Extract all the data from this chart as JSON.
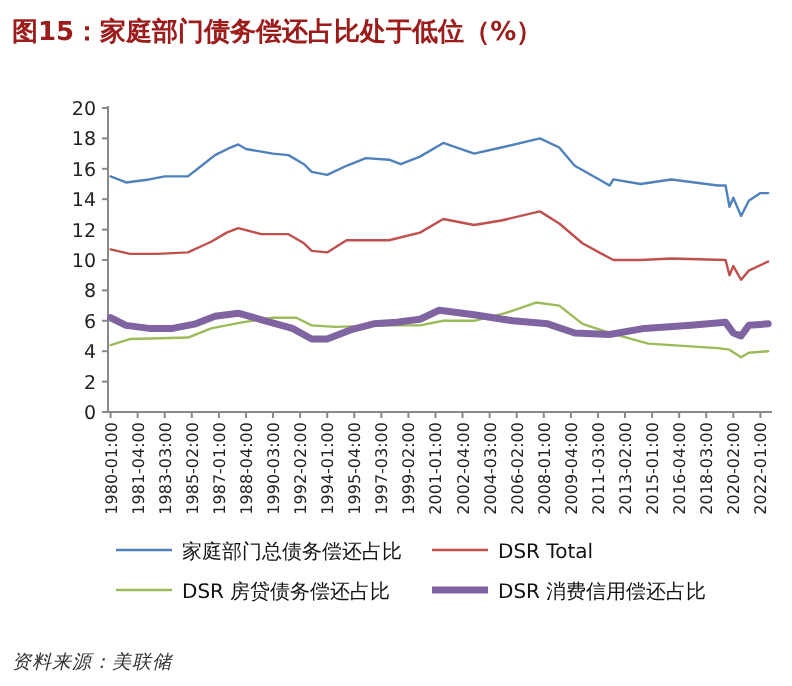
{
  "chart_data": {
    "type": "line",
    "title": "图15：家庭部门债务偿还占比处于低位（%）",
    "xlim": [
      "1979-11",
      "2022-10"
    ],
    "xticks": [
      {
        "value": "1980-01",
        "label": "1980-01:00"
      },
      {
        "value": "1981-10",
        "label": "1981-04:00"
      },
      {
        "value": "1983-07",
        "label": "1983-03:00"
      },
      {
        "value": "1985-04",
        "label": "1985-02:00"
      },
      {
        "value": "1987-01",
        "label": "1987-01:00"
      },
      {
        "value": "1988-10",
        "label": "1988-04:00"
      },
      {
        "value": "1990-07",
        "label": "1990-03:00"
      },
      {
        "value": "1992-04",
        "label": "1992-02:00"
      },
      {
        "value": "1994-01",
        "label": "1994-01:00"
      },
      {
        "value": "1995-10",
        "label": "1995-04:00"
      },
      {
        "value": "1997-07",
        "label": "1997-03:00"
      },
      {
        "value": "1999-04",
        "label": "1999-02:00"
      },
      {
        "value": "2001-01",
        "label": "2001-01:00"
      },
      {
        "value": "2002-10",
        "label": "2002-04:00"
      },
      {
        "value": "2004-07",
        "label": "2004-03:00"
      },
      {
        "value": "2006-04",
        "label": "2006-02:00"
      },
      {
        "value": "2008-01",
        "label": "2008-01:00"
      },
      {
        "value": "2009-10",
        "label": "2009-04:00"
      },
      {
        "value": "2011-07",
        "label": "2011-03:00"
      },
      {
        "value": "2013-04",
        "label": "2013-02:00"
      },
      {
        "value": "2015-01",
        "label": "2015-01:00"
      },
      {
        "value": "2016-10",
        "label": "2016-04:00"
      },
      {
        "value": "2018-07",
        "label": "2018-03:00"
      },
      {
        "value": "2020-04",
        "label": "2020-02:00"
      },
      {
        "value": "2022-01",
        "label": "2022-01:00"
      }
    ],
    "ylim": [
      0,
      20
    ],
    "yticks": [
      0,
      2,
      4,
      6,
      8,
      10,
      12,
      14,
      16,
      18,
      20
    ],
    "grid": false,
    "legend": "bottom",
    "marker": "none",
    "line_style": "solid",
    "series": [
      {
        "name": "家庭部门总债务偿还占比",
        "color": "#4f81bd",
        "x": [
          "1980-01",
          "1981-01",
          "1982-07",
          "1983-07",
          "1985-01",
          "1986-01",
          "1986-10",
          "1987-10",
          "1988-04",
          "1988-10",
          "1990-07",
          "1991-07",
          "1992-07",
          "1993-01",
          "1994-01",
          "1995-04",
          "1996-07",
          "1998-01",
          "1998-10",
          "2000-01",
          "2001-07",
          "2003-07",
          "2005-04",
          "2007-10",
          "2009-01",
          "2010-01",
          "2011-10",
          "2012-04",
          "2012-07",
          "2014-04",
          "2016-04",
          "2019-04",
          "2019-10",
          "2020-01",
          "2020-04",
          "2020-10",
          "2021-04",
          "2022-01",
          "2022-07"
        ],
        "values": [
          15.5,
          15.1,
          15.3,
          15.5,
          15.5,
          16.3,
          16.9,
          17.4,
          17.6,
          17.3,
          17.0,
          16.9,
          16.3,
          15.8,
          15.6,
          16.2,
          16.7,
          16.6,
          16.3,
          16.8,
          17.7,
          17.0,
          17.4,
          18.0,
          17.4,
          16.2,
          15.2,
          14.9,
          15.3,
          15.0,
          15.3,
          14.9,
          14.9,
          13.5,
          14.1,
          12.9,
          13.9,
          14.4,
          14.4
        ]
      },
      {
        "name": "DSR Total",
        "color": "#c0504d",
        "x": [
          "1980-01",
          "1981-04",
          "1983-01",
          "1985-01",
          "1986-07",
          "1987-07",
          "1988-04",
          "1989-10",
          "1991-07",
          "1992-07",
          "1993-01",
          "1994-01",
          "1995-04",
          "1998-01",
          "2000-01",
          "2001-07",
          "2003-07",
          "2005-04",
          "2007-10",
          "2009-01",
          "2010-07",
          "2011-10",
          "2012-07",
          "2014-04",
          "2016-04",
          "2019-10",
          "2020-01",
          "2020-04",
          "2020-10",
          "2021-04",
          "2022-07"
        ],
        "values": [
          10.7,
          10.4,
          10.4,
          10.5,
          11.2,
          11.8,
          12.1,
          11.7,
          11.7,
          11.1,
          10.6,
          10.5,
          11.3,
          11.3,
          11.8,
          12.7,
          12.3,
          12.6,
          13.2,
          12.4,
          11.1,
          10.4,
          10.0,
          10.0,
          10.1,
          10.0,
          9.0,
          9.6,
          8.7,
          9.3,
          9.9
        ]
      },
      {
        "name": "DSR 房贷债务偿还占比",
        "color": "#9bbb59",
        "x": [
          "1980-01",
          "1981-04",
          "1985-01",
          "1986-07",
          "1988-07",
          "1990-07",
          "1992-01",
          "1993-01",
          "1994-07",
          "1998-01",
          "2000-01",
          "2001-07",
          "2003-07",
          "2005-07",
          "2007-07",
          "2009-01",
          "2010-07",
          "2012-04",
          "2014-10",
          "2019-04",
          "2020-01",
          "2020-10",
          "2021-04",
          "2022-07"
        ],
        "values": [
          4.4,
          4.8,
          4.9,
          5.5,
          5.9,
          6.2,
          6.2,
          5.7,
          5.6,
          5.7,
          5.7,
          6.0,
          6.0,
          6.5,
          7.2,
          7.0,
          5.8,
          5.2,
          4.5,
          4.2,
          4.1,
          3.6,
          3.9,
          4.0
        ]
      },
      {
        "name": "DSR 消费信用偿还占比",
        "color": "#8064a2",
        "x": [
          "1980-01",
          "1981-01",
          "1982-07",
          "1984-01",
          "1985-07",
          "1986-10",
          "1988-04",
          "1990-01",
          "1991-10",
          "1993-01",
          "1994-01",
          "1995-07",
          "1997-01",
          "1998-07",
          "2000-01",
          "2001-04",
          "2003-07",
          "2006-01",
          "2008-04",
          "2010-01",
          "2012-04",
          "2014-07",
          "2017-07",
          "2019-10",
          "2020-04",
          "2020-10",
          "2021-04",
          "2022-07"
        ],
        "values": [
          6.2,
          5.7,
          5.5,
          5.5,
          5.8,
          6.3,
          6.5,
          6.0,
          5.5,
          4.8,
          4.8,
          5.4,
          5.8,
          5.9,
          6.1,
          6.7,
          6.4,
          6.0,
          5.8,
          5.2,
          5.1,
          5.5,
          5.7,
          5.9,
          5.2,
          5.0,
          5.7,
          5.8
        ]
      }
    ],
    "annotations": [
      "资料来源：美联储"
    ]
  }
}
